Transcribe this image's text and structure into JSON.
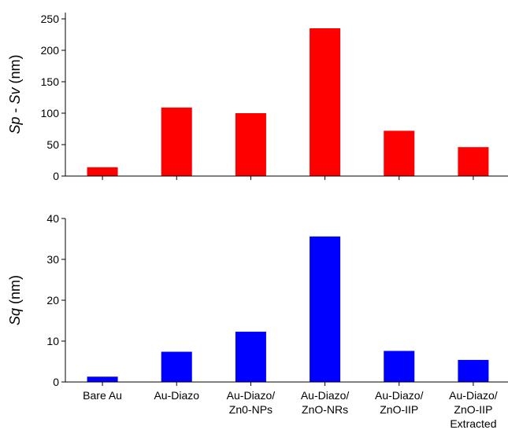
{
  "chart_data": [
    {
      "type": "bar",
      "categories": [
        "Bare Au",
        "Au-Diazo",
        "Au-Diazo/ Zn0-NPs",
        "Au-Diazo/ ZnO-NRs",
        "Au-Diazo/ ZnO-IIP",
        "Au-Diazo/ ZnO-IIP Extracted"
      ],
      "values": [
        14,
        109,
        100,
        235,
        72,
        46
      ],
      "ylabel": {
        "italic_a": "Sp",
        "sep": " - ",
        "italic_b": "Sv",
        "unit": " (nm)"
      },
      "ylim": [
        0,
        260
      ],
      "yticks": [
        0,
        50,
        100,
        150,
        200,
        250
      ],
      "color": "#ff0000",
      "show_category_labels": false,
      "grid": false
    },
    {
      "type": "bar",
      "categories": [
        "Bare Au",
        "Au-Diazo",
        "Au-Diazo/ Zn0-NPs",
        "Au-Diazo/ ZnO-NRs",
        "Au-Diazo/ ZnO-IIP",
        "Au-Diazo/ ZnO-IIP Extracted"
      ],
      "values": [
        1.3,
        7.4,
        12.3,
        35.6,
        7.6,
        5.4
      ],
      "ylabel": {
        "italic_a": "Sq",
        "sep": "",
        "italic_b": "",
        "unit": " (nm)"
      },
      "ylim": [
        0,
        40
      ],
      "yticks": [
        0,
        10,
        20,
        30,
        40
      ],
      "color": "#0000ff",
      "show_category_labels": true,
      "category_label_lines": [
        [
          "Bare Au"
        ],
        [
          "Au-Diazo"
        ],
        [
          "Au-Diazo/",
          "Zn0-NPs"
        ],
        [
          "Au-Diazo/",
          "ZnO-NRs"
        ],
        [
          "Au-Diazo/",
          "ZnO-IIP"
        ],
        [
          "Au-Diazo/",
          "ZnO-IIP",
          "Extracted"
        ]
      ],
      "grid": false
    }
  ]
}
